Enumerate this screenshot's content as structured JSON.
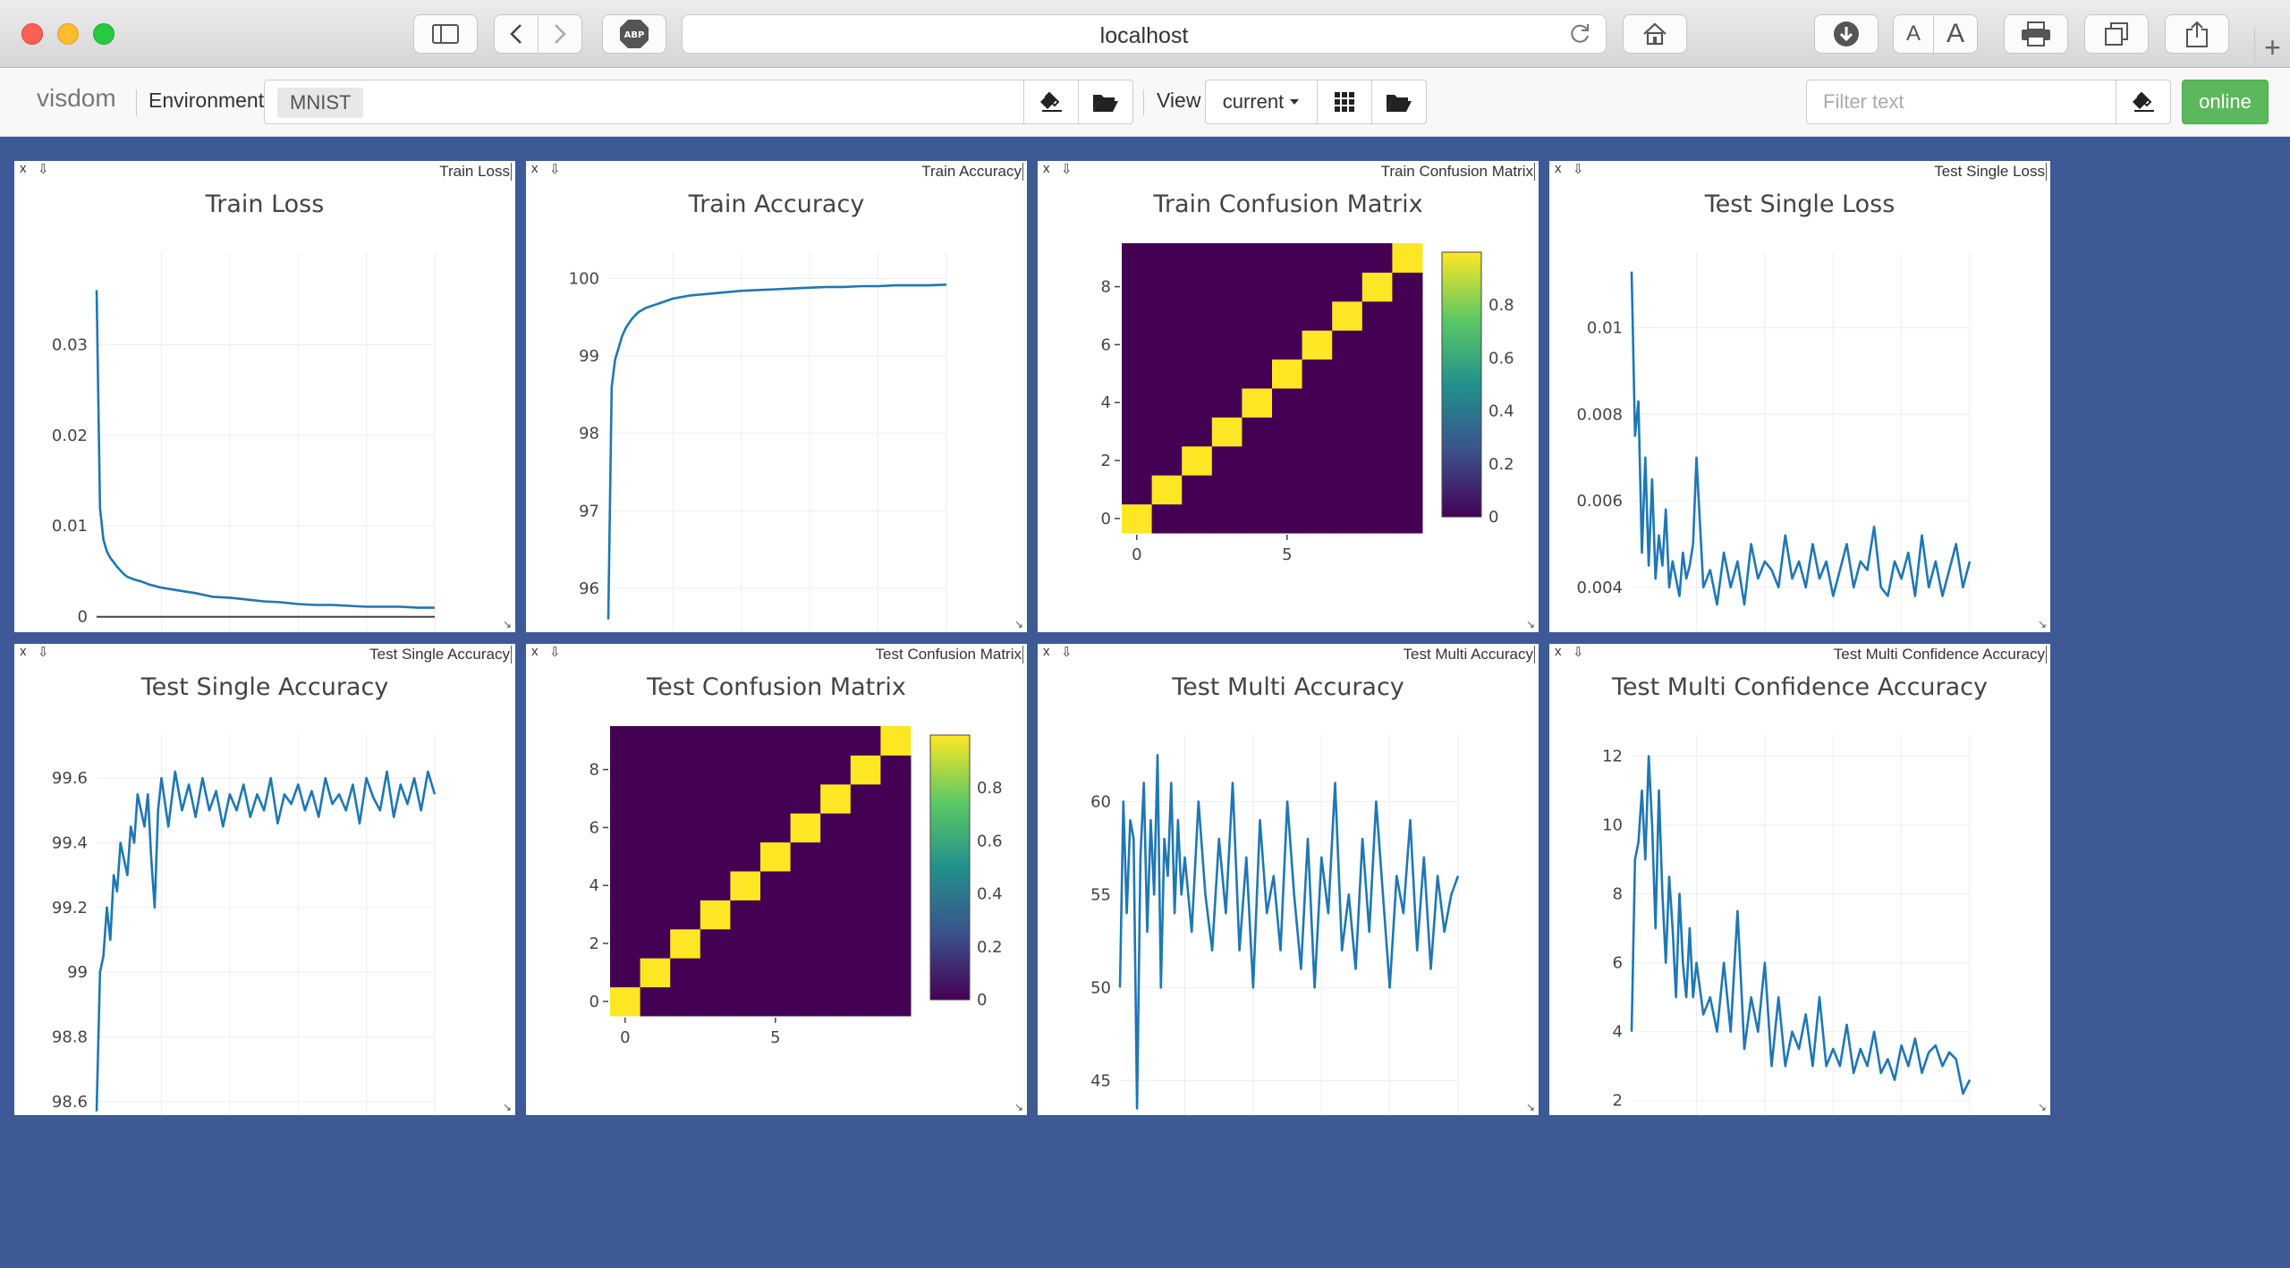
{
  "browser": {
    "url": "localhost"
  },
  "toolbar": {
    "brand": "visdom",
    "environment_label": "Environment",
    "environment_chip": "MNIST",
    "environment_clear": "×",
    "view_label": "View",
    "view_select": "current",
    "filter_placeholder": "Filter text",
    "status": "online",
    "status_color": "#5cb85c"
  },
  "colors": {
    "background": "#3d5a96",
    "line": "#1f77b4",
    "viridis_dark": "#440154",
    "viridis_yellow": "#fde725"
  },
  "panes": [
    {
      "id": "train_loss",
      "pane_title": "Train Loss",
      "close": "x",
      "download": "⇩"
    },
    {
      "id": "train_accuracy",
      "pane_title": "Train Accuracy",
      "close": "x",
      "download": "⇩"
    },
    {
      "id": "train_confusion",
      "pane_title": "Train Confusion Matrix",
      "close": "x",
      "download": "⇩"
    },
    {
      "id": "test_single_loss",
      "pane_title": "Test Single Loss",
      "close": "x",
      "download": "⇩"
    },
    {
      "id": "test_single_accuracy",
      "pane_title": "Test Single Accuracy",
      "close": "x",
      "download": "⇩"
    },
    {
      "id": "test_confusion",
      "pane_title": "Test Confusion Matrix",
      "close": "x",
      "download": "⇩"
    },
    {
      "id": "test_multi_accuracy",
      "pane_title": "Test Multi Accuracy",
      "close": "x",
      "download": "⇩"
    },
    {
      "id": "test_multi_confidence",
      "pane_title": "Test Multi Confidence Accuracy",
      "close": "x",
      "download": "⇩"
    }
  ],
  "chart_data": [
    {
      "type": "line",
      "title": "Train Loss",
      "xlim": [
        1,
        100
      ],
      "ylim": [
        -0.002,
        0.039
      ],
      "xticks": [
        20,
        40,
        60,
        80,
        100
      ],
      "yticks": [
        0,
        0.01,
        0.02,
        0.03
      ],
      "ytick_labels": [
        "0",
        "0.01",
        "0.02",
        "0.03"
      ],
      "zeroline": true,
      "x": [
        1,
        2,
        3,
        4,
        5,
        6,
        7,
        8,
        9,
        10,
        12,
        14,
        16,
        18,
        20,
        25,
        30,
        35,
        40,
        45,
        50,
        55,
        60,
        65,
        70,
        75,
        80,
        85,
        90,
        95,
        100
      ],
      "y": [
        0.036,
        0.012,
        0.0085,
        0.0072,
        0.0065,
        0.006,
        0.0055,
        0.0051,
        0.0047,
        0.0044,
        0.0041,
        0.0039,
        0.0036,
        0.0034,
        0.0032,
        0.0029,
        0.0026,
        0.0022,
        0.0021,
        0.0019,
        0.0017,
        0.0016,
        0.0014,
        0.0013,
        0.0013,
        0.0012,
        0.0011,
        0.0011,
        0.0011,
        0.001,
        0.001
      ]
    },
    {
      "type": "line",
      "title": "Train Accuracy",
      "xlim": [
        1,
        100
      ],
      "ylim": [
        95.4,
        100.2
      ],
      "xticks": [
        20,
        40,
        60,
        80,
        100
      ],
      "yticks": [
        96,
        97,
        98,
        99,
        100
      ],
      "ytick_labels": [
        "96",
        "97",
        "98",
        "99",
        "100"
      ],
      "x": [
        1,
        2,
        3,
        4,
        5,
        6,
        7,
        8,
        9,
        10,
        12,
        14,
        16,
        18,
        20,
        25,
        30,
        35,
        40,
        45,
        50,
        55,
        60,
        65,
        70,
        75,
        80,
        85,
        90,
        95,
        100
      ],
      "y": [
        95.6,
        98.6,
        98.95,
        99.1,
        99.25,
        99.35,
        99.42,
        99.48,
        99.53,
        99.57,
        99.62,
        99.65,
        99.68,
        99.71,
        99.74,
        99.78,
        99.8,
        99.82,
        99.84,
        99.85,
        99.86,
        99.87,
        99.88,
        99.89,
        99.89,
        99.9,
        99.9,
        99.91,
        99.91,
        99.91,
        99.92
      ]
    },
    {
      "type": "heatmap",
      "title": "Train Confusion Matrix",
      "size": 10,
      "diagonal_value": 1,
      "off_diagonal_value": 0,
      "xticks": [
        0,
        5
      ],
      "yticks": [
        0,
        2,
        4,
        6,
        8
      ],
      "colorbar_ticks": [
        0,
        0.2,
        0.4,
        0.6,
        0.8
      ],
      "colorbar_labels": [
        "0",
        "0.2",
        "0.4",
        "0.6",
        "0.8"
      ]
    },
    {
      "type": "line",
      "title": "Test Single Loss",
      "xlim": [
        1,
        100
      ],
      "ylim": [
        0.0029,
        0.0115
      ],
      "xticks": [
        20,
        40,
        60,
        80,
        100
      ],
      "yticks": [
        0.004,
        0.006,
        0.008,
        0.01
      ],
      "ytick_labels": [
        "0.004",
        "0.006",
        "0.008",
        "0.01"
      ],
      "x": [
        1,
        2,
        3,
        4,
        5,
        6,
        7,
        8,
        9,
        10,
        11,
        12,
        13,
        14,
        15,
        16,
        17,
        18,
        19,
        20,
        22,
        24,
        26,
        28,
        30,
        32,
        34,
        36,
        38,
        40,
        42,
        44,
        46,
        48,
        50,
        52,
        54,
        56,
        58,
        60,
        62,
        64,
        66,
        68,
        70,
        72,
        74,
        76,
        78,
        80,
        82,
        84,
        86,
        88,
        90,
        92,
        94,
        96,
        98,
        100
      ],
      "y": [
        0.0113,
        0.0075,
        0.0083,
        0.0048,
        0.007,
        0.0045,
        0.0065,
        0.0042,
        0.0052,
        0.0045,
        0.0058,
        0.004,
        0.0046,
        0.0042,
        0.0038,
        0.0048,
        0.0042,
        0.0045,
        0.005,
        0.007,
        0.004,
        0.0044,
        0.0036,
        0.0048,
        0.004,
        0.0046,
        0.0036,
        0.005,
        0.0042,
        0.0046,
        0.0044,
        0.004,
        0.0052,
        0.0042,
        0.0046,
        0.004,
        0.005,
        0.0042,
        0.0046,
        0.0038,
        0.0044,
        0.005,
        0.004,
        0.0046,
        0.0044,
        0.0054,
        0.004,
        0.0038,
        0.0046,
        0.0042,
        0.0048,
        0.0038,
        0.0052,
        0.004,
        0.0046,
        0.0038,
        0.0044,
        0.005,
        0.004,
        0.0046
      ]
    },
    {
      "type": "line",
      "title": "Test Single Accuracy",
      "xlim": [
        1,
        100
      ],
      "ylim": [
        98.55,
        99.7
      ],
      "xticks": [
        20,
        40,
        60,
        80,
        100
      ],
      "yticks": [
        98.6,
        98.8,
        99,
        99.2,
        99.4,
        99.6
      ],
      "ytick_labels": [
        "98.6",
        "98.8",
        "99",
        "99.2",
        "99.4",
        "99.6"
      ],
      "x": [
        1,
        2,
        3,
        4,
        5,
        6,
        7,
        8,
        9,
        10,
        11,
        12,
        13,
        14,
        15,
        16,
        17,
        18,
        19,
        20,
        22,
        24,
        26,
        28,
        30,
        32,
        34,
        36,
        38,
        40,
        42,
        44,
        46,
        48,
        50,
        52,
        54,
        56,
        58,
        60,
        62,
        64,
        66,
        68,
        70,
        72,
        74,
        76,
        78,
        80,
        82,
        84,
        86,
        88,
        90,
        92,
        94,
        96,
        98,
        100
      ],
      "y": [
        98.57,
        99.0,
        99.05,
        99.2,
        99.1,
        99.3,
        99.25,
        99.4,
        99.35,
        99.3,
        99.45,
        99.4,
        99.55,
        99.5,
        99.45,
        99.55,
        99.35,
        99.2,
        99.5,
        99.6,
        99.45,
        99.62,
        99.5,
        99.58,
        99.48,
        99.6,
        99.5,
        99.56,
        99.45,
        99.55,
        99.5,
        99.58,
        99.48,
        99.55,
        99.5,
        99.6,
        99.46,
        99.55,
        99.52,
        99.58,
        99.5,
        99.56,
        99.48,
        99.6,
        99.52,
        99.55,
        99.5,
        99.58,
        99.46,
        99.6,
        99.54,
        99.5,
        99.62,
        99.48,
        99.58,
        99.52,
        99.6,
        99.5,
        99.62,
        99.55
      ]
    },
    {
      "type": "heatmap",
      "title": "Test Confusion Matrix",
      "size": 10,
      "diagonal_value": 1,
      "off_diagonal_value": 0,
      "xticks": [
        0,
        5
      ],
      "yticks": [
        0,
        2,
        4,
        6,
        8
      ],
      "colorbar_ticks": [
        0,
        0.2,
        0.4,
        0.6,
        0.8
      ],
      "colorbar_labels": [
        "0",
        "0.2",
        "0.4",
        "0.6",
        "0.8"
      ]
    },
    {
      "type": "line",
      "title": "Test Multi Accuracy",
      "xlim": [
        1,
        100
      ],
      "ylim": [
        43,
        63
      ],
      "xticks": [
        20,
        40,
        60,
        80,
        100
      ],
      "yticks": [
        45,
        50,
        55,
        60
      ],
      "ytick_labels": [
        "45",
        "50",
        "55",
        "60"
      ],
      "x": [
        1,
        2,
        3,
        4,
        5,
        6,
        7,
        8,
        9,
        10,
        11,
        12,
        13,
        14,
        15,
        16,
        17,
        18,
        19,
        20,
        22,
        24,
        26,
        28,
        30,
        32,
        34,
        36,
        38,
        40,
        42,
        44,
        46,
        48,
        50,
        52,
        54,
        56,
        58,
        60,
        62,
        64,
        66,
        68,
        70,
        72,
        74,
        76,
        78,
        80,
        82,
        84,
        86,
        88,
        90,
        92,
        94,
        96,
        98,
        100
      ],
      "y": [
        50,
        60,
        54,
        59,
        58,
        43.5,
        57,
        61,
        53,
        59,
        55,
        62.5,
        50,
        58,
        56,
        61,
        54,
        59,
        55,
        57,
        53,
        60,
        55,
        52,
        58,
        54,
        61,
        52,
        57,
        50,
        59,
        54,
        56,
        52,
        60,
        55,
        51,
        58,
        50,
        57,
        54,
        61,
        52,
        55,
        51,
        58,
        53,
        60,
        55,
        50,
        56,
        54,
        59,
        52,
        57,
        51,
        56,
        53,
        55,
        56
      ]
    },
    {
      "type": "line",
      "title": "Test Multi Confidence Accuracy",
      "xlim": [
        1,
        100
      ],
      "ylim": [
        1.5,
        12.3
      ],
      "xticks": [
        20,
        40,
        60,
        80,
        100
      ],
      "yticks": [
        2,
        4,
        6,
        8,
        10,
        12
      ],
      "ytick_labels": [
        "2",
        "4",
        "6",
        "8",
        "10",
        "12"
      ],
      "x": [
        1,
        2,
        3,
        4,
        5,
        6,
        7,
        8,
        9,
        10,
        11,
        12,
        13,
        14,
        15,
        16,
        17,
        18,
        19,
        20,
        22,
        24,
        26,
        28,
        30,
        32,
        34,
        36,
        38,
        40,
        42,
        44,
        46,
        48,
        50,
        52,
        54,
        56,
        58,
        60,
        62,
        64,
        66,
        68,
        70,
        72,
        74,
        76,
        78,
        80,
        82,
        84,
        86,
        88,
        90,
        92,
        94,
        96,
        98,
        100
      ],
      "y": [
        4,
        9,
        9.5,
        11,
        9,
        12,
        10,
        7,
        11,
        8,
        6,
        8.5,
        7,
        5,
        8,
        6,
        5,
        7,
        5,
        6,
        4.5,
        5,
        4,
        6,
        4,
        7.5,
        3.5,
        5,
        4,
        6,
        3,
        5,
        3,
        4,
        3.5,
        4.5,
        3,
        5,
        3,
        3.5,
        3,
        4.2,
        2.8,
        3.5,
        3,
        4,
        2.8,
        3.2,
        2.6,
        3.6,
        3,
        3.8,
        2.8,
        3.4,
        3.6,
        3,
        3.4,
        3.2,
        2.2,
        2.6
      ]
    }
  ]
}
